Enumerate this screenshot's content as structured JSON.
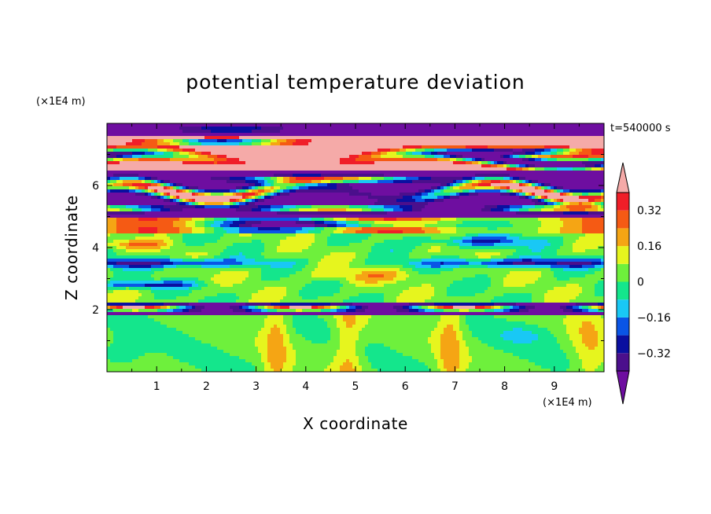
{
  "chart_data": {
    "type": "heatmap",
    "title": "potential temperature deviation",
    "xlabel": "X coordinate",
    "ylabel": "Z coordinate",
    "x_unit": "(×1E4 m)",
    "y_unit": "(×1E4 m)",
    "time_label": "t=540000 s",
    "xlim": [
      0,
      10
    ],
    "ylim": [
      0,
      8
    ],
    "x_ticks": [
      "1",
      "2",
      "3",
      "4",
      "5",
      "6",
      "7",
      "8",
      "9"
    ],
    "y_ticks": [
      "2",
      "4",
      "6"
    ],
    "colorbar": {
      "labels": [
        "0.32",
        "0.16",
        "0",
        "−0.16",
        "−0.32"
      ],
      "label_values": [
        0.32,
        0.16,
        0,
        -0.16,
        -0.32
      ],
      "levels": [
        -0.4,
        -0.32,
        -0.24,
        -0.16,
        -0.08,
        0,
        0.08,
        0.16,
        0.24,
        0.32,
        0.4
      ],
      "colors": [
        "#4b0f8c",
        "#0a0fa0",
        "#0a55e6",
        "#19c8f5",
        "#14e68c",
        "#6ef03c",
        "#e6f51e",
        "#f5a514",
        "#f55a14",
        "#f01e28"
      ],
      "over_color": "#f5aaa8",
      "under_color": "#6e0ea0",
      "extend": "both"
    },
    "regions": [
      {
        "z_range": [
          7.6,
          8.0
        ],
        "value": -0.45,
        "description": "purple"
      },
      {
        "z_range": [
          6.5,
          7.6
        ],
        "value": 0.45,
        "description": "pink with purple streaks"
      },
      {
        "z_range": [
          5.0,
          6.5
        ],
        "value": -0.45,
        "description": "purple/pink banded"
      },
      {
        "z_range": [
          4.6,
          5.3
        ],
        "value": 0.3,
        "description": "red-orange"
      },
      {
        "z_range": [
          2.0,
          4.6
        ],
        "value": 0.0,
        "description": "green/cyan layers"
      },
      {
        "z_range": [
          1.8,
          2.2
        ],
        "value": -0.4,
        "description": "purple/pink interface"
      },
      {
        "z_range": [
          0.0,
          1.8
        ],
        "value": 0.0,
        "description": "green with yellow plumes"
      }
    ]
  }
}
